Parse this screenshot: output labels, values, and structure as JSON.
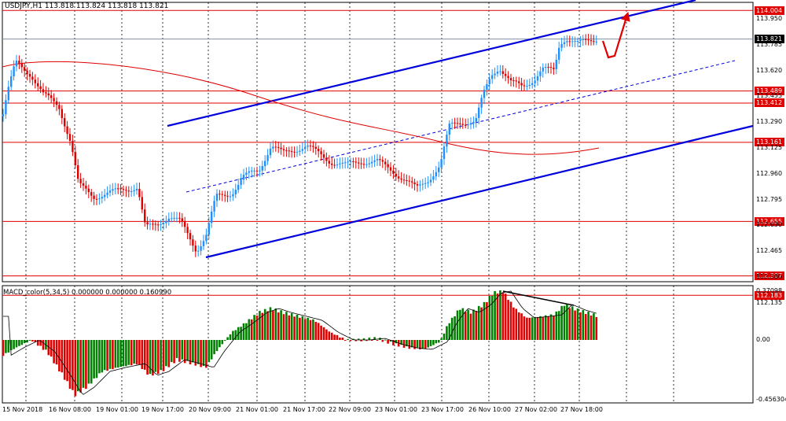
{
  "header": {
    "symbol": "USDJPY,H1",
    "ohlc": "113.818 113.824 113.818 113.821"
  },
  "macd": {
    "title": "MACD_color(5,34,5) 0.000000 0.000000 0.160990",
    "scale": [
      "0.37098",
      "0.00",
      "-0.456304"
    ]
  },
  "price_scale": [
    "113.950",
    "113.785",
    "113.620",
    "113.455",
    "113.290",
    "113.125",
    "112.960",
    "112.795",
    "112.630",
    "112.465",
    "112.300",
    "112.135"
  ],
  "price_tags": [
    {
      "value": "114.004",
      "kind": "level"
    },
    {
      "value": "113.821",
      "kind": "current"
    },
    {
      "value": "113.489",
      "kind": "level"
    },
    {
      "value": "113.412",
      "kind": "level"
    },
    {
      "value": "113.161",
      "kind": "level"
    },
    {
      "value": "112.655",
      "kind": "level"
    },
    {
      "value": "112.307",
      "kind": "level"
    },
    {
      "value": "112.183",
      "kind": "level"
    }
  ],
  "time_axis": [
    "15 Nov 2018",
    "16 Nov 08:00",
    "19 Nov 01:00",
    "19 Nov 17:00",
    "20 Nov 09:00",
    "21 Nov 01:00",
    "21 Nov 17:00",
    "22 Nov 09:00",
    "23 Nov 01:00",
    "23 Nov 17:00",
    "26 Nov 10:00",
    "27 Nov 02:00",
    "27 Nov 18:00"
  ],
  "colors": {
    "bull": "#1e90ff",
    "bear": "#e00000",
    "level": "#e00000",
    "channel": "#0000dd",
    "macd_up": "#008000",
    "macd_down": "#e00000",
    "ma": "#e00000"
  }
}
